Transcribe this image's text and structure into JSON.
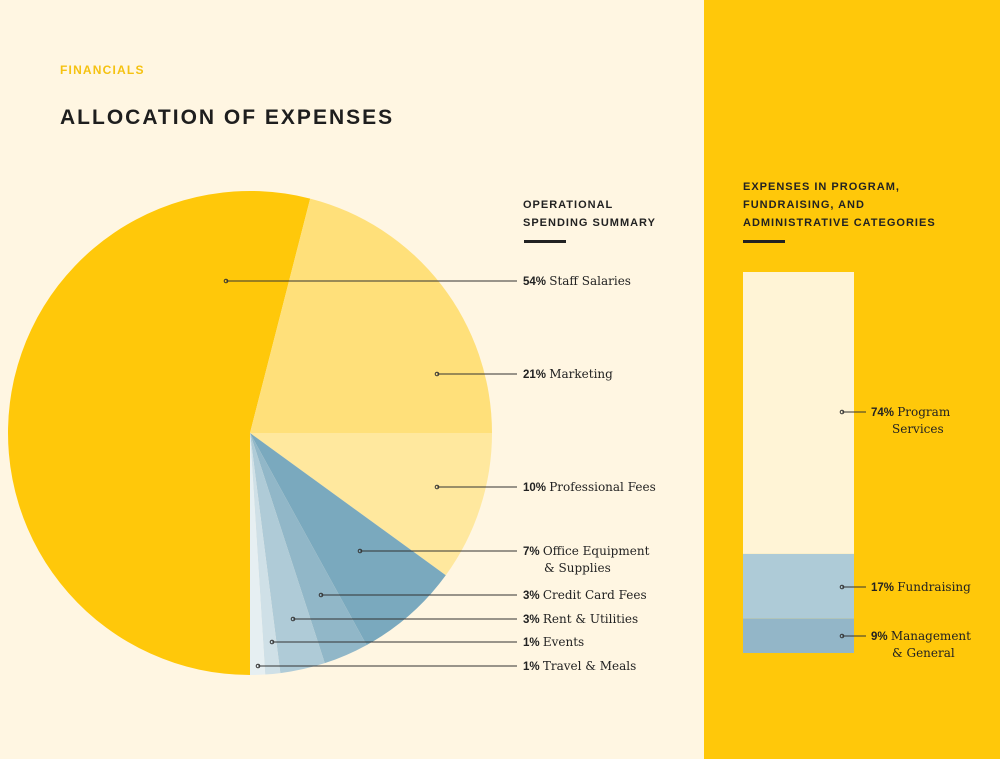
{
  "header": {
    "eyebrow": "FINANCIALS",
    "title": "ALLOCATION OF EXPENSES"
  },
  "pie_heading": "OPERATIONAL SPENDING SUMMARY",
  "bar_heading": "EXPENSES IN PROGRAM, FUNDRAISING, AND ADMINISTRATIVE CATEGORIES",
  "chart_data": [
    {
      "type": "pie",
      "title": "OPERATIONAL SPENDING SUMMARY",
      "direction": "clockwise from bottom",
      "slices": [
        {
          "name": "Staff Salaries",
          "value": 54,
          "color": "#FFC80A",
          "label": [
            "54%",
            "Staff Salaries"
          ]
        },
        {
          "name": "Marketing",
          "value": 21,
          "color": "#FFE07A",
          "label": [
            "21%",
            "Marketing"
          ]
        },
        {
          "name": "Professional Fees",
          "value": 10,
          "color": "#FFE89E",
          "label": [
            "10%",
            "Professional Fees"
          ]
        },
        {
          "name": "Office Equipment & Supplies",
          "value": 7,
          "color": "#7AA9BE",
          "label": [
            "7%",
            "Office Equipment",
            "& Supplies"
          ]
        },
        {
          "name": "Credit Card Fees",
          "value": 3,
          "color": "#91B7C8",
          "label": [
            "3%",
            "Credit Card Fees"
          ]
        },
        {
          "name": "Rent & Utilities",
          "value": 3,
          "color": "#AFCBD7",
          "label": [
            "3%",
            "Rent & Utilities"
          ]
        },
        {
          "name": "Events",
          "value": 1,
          "color": "#CFE0E7",
          "label": [
            "1%",
            "Events"
          ]
        },
        {
          "name": "Travel & Meals",
          "value": 1,
          "color": "#E6EFF2",
          "label": [
            "1%",
            "Travel & Meals"
          ]
        }
      ]
    },
    {
      "type": "bar",
      "stacked": true,
      "title": "EXPENSES IN PROGRAM, FUNDRAISING, AND ADMINISTRATIVE CATEGORIES",
      "segments": [
        {
          "name": "Program Services",
          "value": 74,
          "color": "#FFF4D6",
          "label": [
            "74%",
            "Program",
            "Services"
          ]
        },
        {
          "name": "Fundraising",
          "value": 17,
          "color": "#AECBD7",
          "label": [
            "17%",
            "Fundraising"
          ]
        },
        {
          "name": "Management & General",
          "value": 9,
          "color": "#93B6C8",
          "label": [
            "9%",
            "Management",
            "& General"
          ]
        }
      ]
    }
  ]
}
